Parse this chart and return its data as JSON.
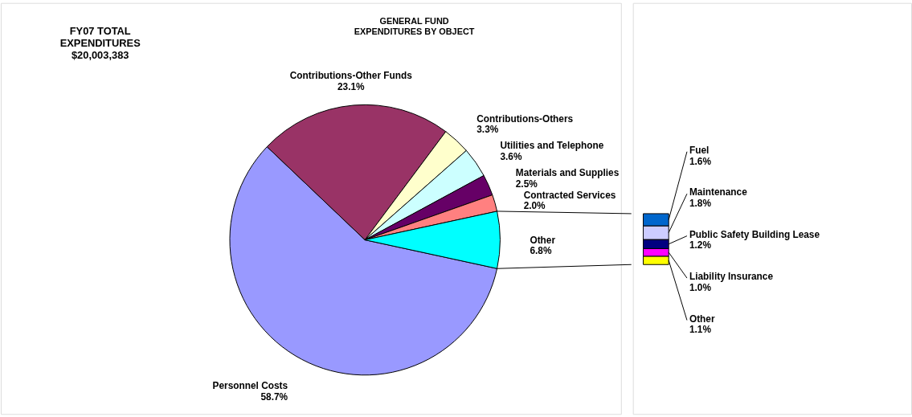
{
  "chart_data": [
    {
      "type": "pie",
      "title": "GENERAL FUND\nEXPENDITURES BY OBJECT",
      "annotations": [
        "FY07 TOTAL\nEXPENDITURES\n$20,003,383"
      ],
      "categories": [
        "Personnel Costs",
        "Contributions-Other Funds",
        "Contributions-Others",
        "Utilities and Telephone",
        "Materials and Supplies",
        "Contracted Services",
        "Other"
      ],
      "values": [
        58.7,
        23.1,
        3.3,
        3.6,
        2.5,
        2.0,
        6.8
      ],
      "colors": [
        "#9999ff",
        "#993366",
        "#ffffcc",
        "#ccffff",
        "#660066",
        "#ff8080",
        "#00ffff"
      ],
      "value_labels": [
        "58.7%",
        "23.1%",
        "3.3%",
        "3.6%",
        "2.5%",
        "2.0%",
        "6.8%"
      ]
    },
    {
      "type": "bar",
      "stacked": true,
      "categories": [
        null
      ],
      "series": [
        {
          "name": "Other",
          "color": "#ffff00",
          "values": [
            1.1
          ],
          "value_labels": [
            "1.1%"
          ]
        },
        {
          "name": "Liability Insurance",
          "color": "#ff00ff",
          "values": [
            1.0
          ],
          "value_labels": [
            "1.0%"
          ]
        },
        {
          "name": "Public Safety Building Lease",
          "color": "#000080",
          "values": [
            1.2
          ],
          "value_labels": [
            "1.2%"
          ]
        },
        {
          "name": "Maintenance",
          "color": "#ccccff",
          "values": [
            1.8
          ],
          "value_labels": [
            "1.8%"
          ]
        },
        {
          "name": "Fuel",
          "color": "#0066cc",
          "values": [
            1.6
          ],
          "value_labels": [
            "1.6%"
          ]
        }
      ]
    }
  ]
}
